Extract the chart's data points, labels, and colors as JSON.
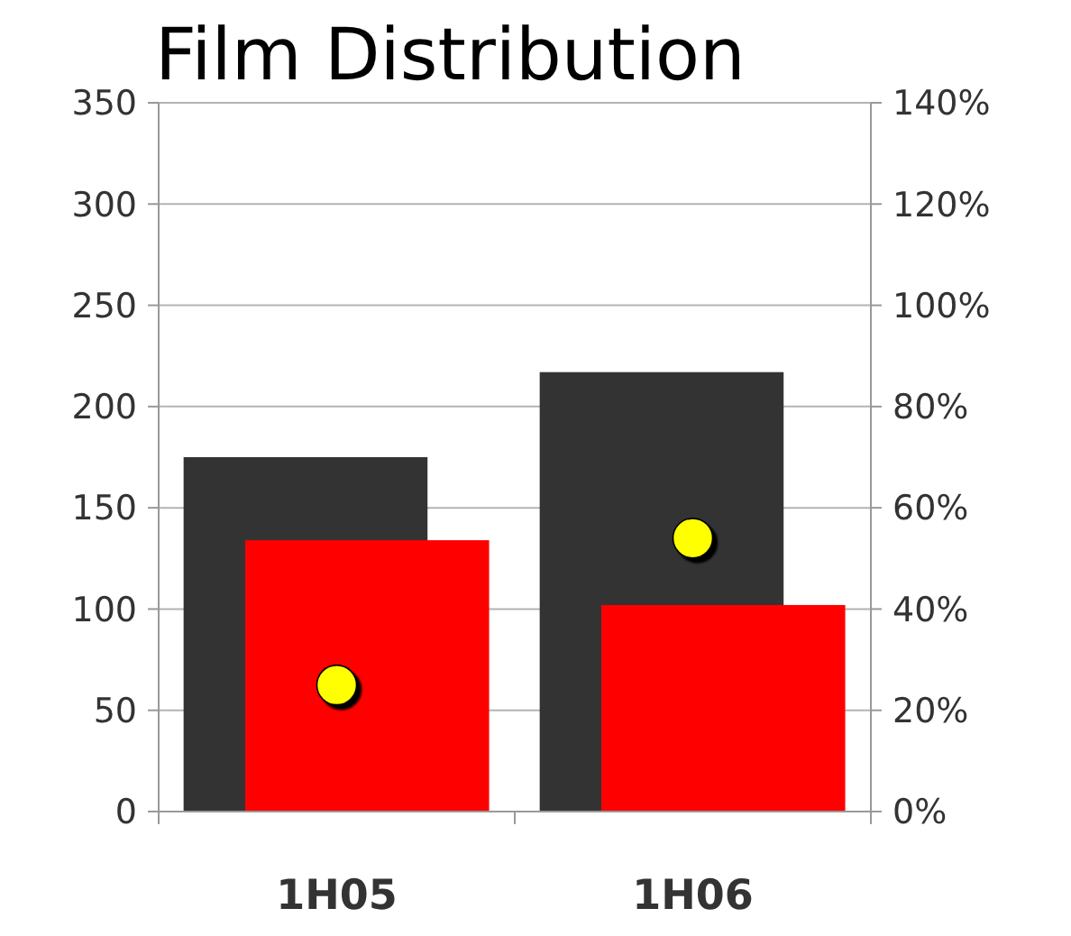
{
  "chart_data": {
    "type": "bar",
    "title": "Film Distribution",
    "categories": [
      "1H05",
      "1H06"
    ],
    "series": [
      {
        "color": "#333333",
        "values": [
          175,
          217
        ]
      },
      {
        "color": "#ff0000",
        "values": [
          134,
          102
        ]
      },
      {
        "type": "scatter",
        "color": "#ffff00",
        "values": [
          25,
          54
        ],
        "axis": "y2"
      }
    ],
    "ylim": [
      0,
      350
    ],
    "yticks": [
      0,
      50,
      100,
      150,
      200,
      250,
      300,
      350
    ],
    "y2lim": [
      0,
      140
    ],
    "y2ticks": [
      {
        "value": 0,
        "label": "0%"
      },
      {
        "value": 20,
        "label": "20%"
      },
      {
        "value": 40,
        "label": "40%"
      },
      {
        "value": 60,
        "label": "60%"
      },
      {
        "value": 80,
        "label": "80%"
      },
      {
        "value": 100,
        "label": "100%"
      },
      {
        "value": 120,
        "label": "120%"
      },
      {
        "value": 140,
        "label": "140%"
      }
    ],
    "grid": "y",
    "marker": "circle"
  }
}
